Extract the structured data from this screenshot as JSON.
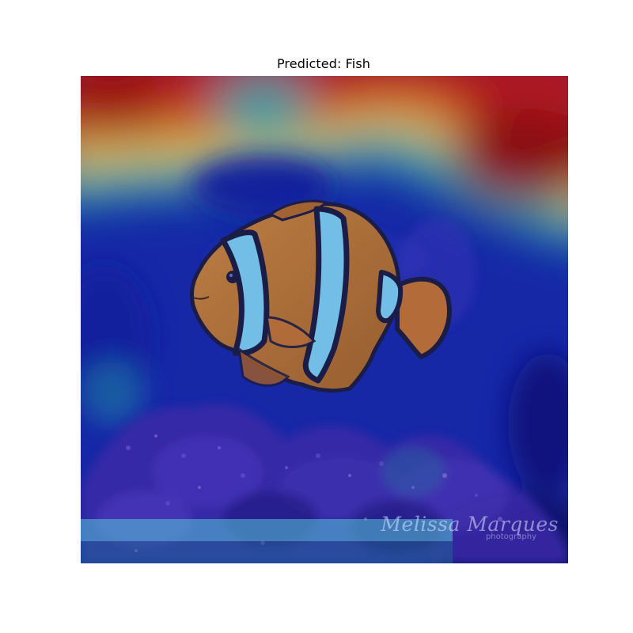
{
  "title": "Predicted: Fish",
  "watermark": {
    "signature": "Melissa Marques",
    "subtitle": "photography"
  },
  "colors": {
    "hot": "#c21a06",
    "warm": "#f0c000",
    "mid": "#1aa5a0",
    "cool": "#1030b0",
    "cold": "#10108c",
    "fish_orange": "#c97a2a",
    "fish_stripe": "#7fd3f0",
    "fish_outline": "#1c1c3a"
  }
}
